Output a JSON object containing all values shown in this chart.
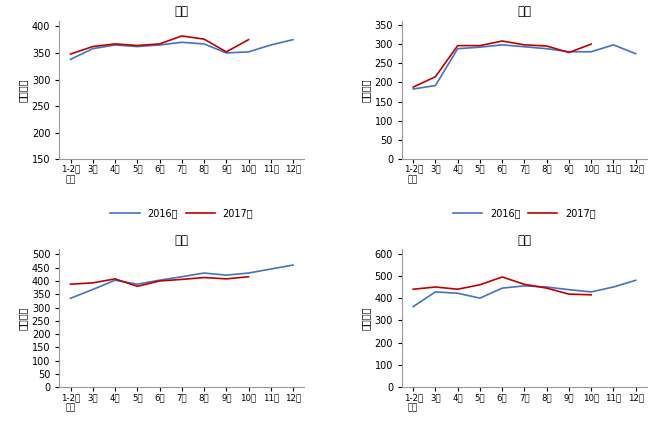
{
  "x_labels": [
    "1-2月\n平均",
    "3月",
    "4月",
    "5月",
    "6月",
    "7月",
    "8月",
    "9月",
    "10月",
    "11月",
    "12月"
  ],
  "charts": [
    {
      "title": "化工",
      "ylabel": "万千瓦时",
      "ylim": [
        150,
        410
      ],
      "yticks": [
        150,
        200,
        250,
        300,
        350,
        400
      ],
      "data_2016": [
        338,
        358,
        365,
        362,
        365,
        370,
        367,
        350,
        352,
        365,
        375
      ],
      "data_2017": [
        348,
        362,
        367,
        364,
        367,
        382,
        376,
        352,
        375,
        null,
        null
      ]
    },
    {
      "title": "建材",
      "ylabel": "万千瓦时",
      "ylim": [
        0,
        360
      ],
      "yticks": [
        0,
        50,
        100,
        150,
        200,
        250,
        300,
        350
      ],
      "data_2016": [
        183,
        192,
        288,
        292,
        298,
        293,
        288,
        280,
        280,
        298,
        275
      ],
      "data_2017": [
        188,
        215,
        296,
        296,
        308,
        298,
        295,
        278,
        300,
        null,
        null
      ]
    },
    {
      "title": "黑色",
      "ylabel": "万千瓦时",
      "ylim": [
        0,
        520
      ],
      "yticks": [
        0,
        50,
        100,
        150,
        200,
        250,
        300,
        350,
        400,
        450,
        500
      ],
      "data_2016": [
        335,
        368,
        403,
        388,
        403,
        416,
        430,
        422,
        430,
        445,
        460
      ],
      "data_2017": [
        388,
        393,
        408,
        380,
        400,
        406,
        413,
        408,
        416,
        null,
        null
      ]
    },
    {
      "title": "有色",
      "ylabel": "万千瓦时",
      "ylim": [
        0,
        620
      ],
      "yticks": [
        0,
        100,
        200,
        300,
        400,
        500,
        600
      ],
      "data_2016": [
        362,
        428,
        422,
        400,
        445,
        455,
        450,
        438,
        428,
        450,
        480
      ],
      "data_2017": [
        440,
        450,
        440,
        460,
        495,
        462,
        445,
        418,
        415,
        null,
        null
      ]
    }
  ],
  "color_2016": "#4472C4",
  "color_2017": "#C00000",
  "legend_labels": [
    "2016年",
    "2017年"
  ],
  "background_color": "#FFFFFF"
}
